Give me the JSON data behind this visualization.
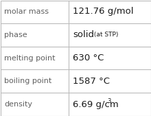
{
  "rows": [
    {
      "label": "molar mass",
      "value": "121.76 g/mol",
      "type": "plain"
    },
    {
      "label": "phase",
      "value": "solid",
      "suffix": " (at STP)",
      "type": "suffix"
    },
    {
      "label": "melting point",
      "value": "630 °C",
      "type": "plain"
    },
    {
      "label": "boiling point",
      "value": "1587 °C",
      "type": "plain"
    },
    {
      "label": "density",
      "value": "6.69 g/cm",
      "super": "3",
      "type": "super"
    }
  ],
  "col_split": 0.455,
  "background_color": "#ffffff",
  "border_color": "#bbbbbb",
  "label_color": "#606060",
  "value_color": "#1a1a1a",
  "label_fontsize": 8.0,
  "value_fontsize": 9.5,
  "suffix_fontsize": 6.5,
  "super_fontsize": 6.0,
  "label_font": "DejaVu Sans",
  "value_font": "DejaVu Sans"
}
